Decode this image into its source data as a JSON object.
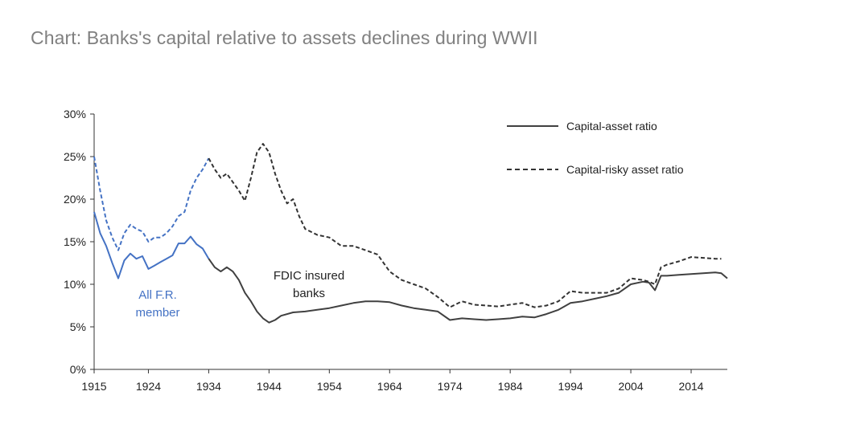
{
  "chart_data": {
    "type": "line",
    "title": "Chart: Banks's capital relative to assets declines during WWII",
    "xlabel": "",
    "ylabel": "",
    "xlim": [
      1915,
      2020
    ],
    "ylim": [
      0,
      30
    ],
    "x_ticks": [
      1915,
      1924,
      1934,
      1944,
      1954,
      1964,
      1974,
      1984,
      1994,
      2004,
      2014
    ],
    "y_ticks": [
      0,
      5,
      10,
      15,
      20,
      25,
      30
    ],
    "y_tick_labels": [
      "0%",
      "5%",
      "10%",
      "15%",
      "20%",
      "25%",
      "30%"
    ],
    "grid": false,
    "legend_position": "top-right",
    "legend": [
      "Capital-asset ratio",
      "Capital-risky asset ratio"
    ],
    "annotations": [
      {
        "lines": [
          "All F.R.",
          "member"
        ],
        "color": "#4472c4",
        "x": 1921,
        "y": 8
      },
      {
        "lines": [
          "FDIC insured",
          "banks"
        ],
        "color": "#222222",
        "x": 1951,
        "y": 10
      }
    ],
    "colors": {
      "fr_member": "#4472c4",
      "fdic": "#404040",
      "axis": "#333333"
    },
    "series": [
      {
        "name": "Capital-asset ratio",
        "style": "solid",
        "segments": [
          {
            "label": "All F.R. member",
            "color": "#4472c4",
            "x": [
              1915,
              1916,
              1917,
              1918,
              1919,
              1920,
              1921,
              1922,
              1923,
              1924,
              1925,
              1926,
              1927,
              1928,
              1929,
              1930,
              1931,
              1932,
              1933,
              1934
            ],
            "y": [
              18.5,
              16,
              14.5,
              12.5,
              10.7,
              12.8,
              13.6,
              13.0,
              13.3,
              11.8,
              12.2,
              12.6,
              13.0,
              13.4,
              14.8,
              14.8,
              15.6,
              14.7,
              14.2,
              13.0
            ]
          },
          {
            "label": "FDIC insured banks",
            "color": "#404040",
            "x": [
              1934,
              1935,
              1936,
              1937,
              1938,
              1939,
              1940,
              1941,
              1942,
              1943,
              1944,
              1945,
              1946,
              1948,
              1950,
              1952,
              1954,
              1956,
              1958,
              1960,
              1962,
              1964,
              1966,
              1968,
              1970,
              1972,
              1974,
              1976,
              1978,
              1980,
              1982,
              1984,
              1986,
              1988,
              1990,
              1992,
              1994,
              1996,
              1998,
              2000,
              2002,
              2004,
              2006,
              2007,
              2008,
              2009,
              2010,
              2012,
              2014,
              2016,
              2018,
              2019,
              2020
            ],
            "y": [
              13.0,
              12.0,
              11.5,
              12.0,
              11.5,
              10.5,
              9.0,
              8.0,
              6.8,
              6.0,
              5.5,
              5.8,
              6.3,
              6.7,
              6.8,
              7.0,
              7.2,
              7.5,
              7.8,
              8.0,
              8.0,
              7.9,
              7.5,
              7.2,
              7.0,
              6.8,
              5.8,
              6.0,
              5.9,
              5.8,
              5.9,
              6.0,
              6.2,
              6.1,
              6.5,
              7.0,
              7.8,
              8.0,
              8.3,
              8.6,
              9.0,
              10.0,
              10.3,
              10.2,
              9.3,
              11.0,
              11.0,
              11.1,
              11.2,
              11.3,
              11.4,
              11.3,
              10.7
            ]
          }
        ]
      },
      {
        "name": "Capital-risky asset ratio",
        "style": "dashed",
        "segments": [
          {
            "label": "All F.R. member",
            "color": "#4472c4",
            "x": [
              1915,
              1916,
              1917,
              1918,
              1919,
              1920,
              1921,
              1922,
              1923,
              1924,
              1925,
              1926,
              1927,
              1928,
              1929,
              1930,
              1931,
              1932,
              1933,
              1934
            ],
            "y": [
              25.0,
              21,
              17.5,
              15.5,
              14.0,
              16.0,
              17.0,
              16.5,
              16.2,
              15.0,
              15.5,
              15.5,
              16.0,
              16.8,
              18.0,
              18.5,
              21.0,
              22.5,
              23.5,
              24.8
            ]
          },
          {
            "label": "FDIC insured banks",
            "color": "#333333",
            "x": [
              1934,
              1935,
              1936,
              1937,
              1938,
              1939,
              1940,
              1941,
              1942,
              1943,
              1944,
              1945,
              1946,
              1947,
              1948,
              1949,
              1950,
              1952,
              1954,
              1956,
              1958,
              1960,
              1962,
              1964,
              1966,
              1968,
              1970,
              1972,
              1974,
              1976,
              1978,
              1980,
              1982,
              1984,
              1986,
              1988,
              1990,
              1992,
              1994,
              1996,
              1998,
              2000,
              2002,
              2004,
              2006,
              2007,
              2008,
              2009,
              2010,
              2012,
              2014,
              2016,
              2018,
              2019
            ],
            "y": [
              24.8,
              23.5,
              22.5,
              23.0,
              22.0,
              21.0,
              19.8,
              22.5,
              25.5,
              26.5,
              25.5,
              23.0,
              21.0,
              19.5,
              20.0,
              18.0,
              16.5,
              15.8,
              15.5,
              14.5,
              14.5,
              14.0,
              13.5,
              11.5,
              10.5,
              10.0,
              9.5,
              8.5,
              7.3,
              8.0,
              7.6,
              7.5,
              7.4,
              7.6,
              7.8,
              7.3,
              7.5,
              8.0,
              9.2,
              9.0,
              9.0,
              9.0,
              9.5,
              10.7,
              10.5,
              10.3,
              10.0,
              12.0,
              12.3,
              12.7,
              13.2,
              13.1,
              13.0,
              13.0
            ]
          }
        ]
      }
    ]
  }
}
